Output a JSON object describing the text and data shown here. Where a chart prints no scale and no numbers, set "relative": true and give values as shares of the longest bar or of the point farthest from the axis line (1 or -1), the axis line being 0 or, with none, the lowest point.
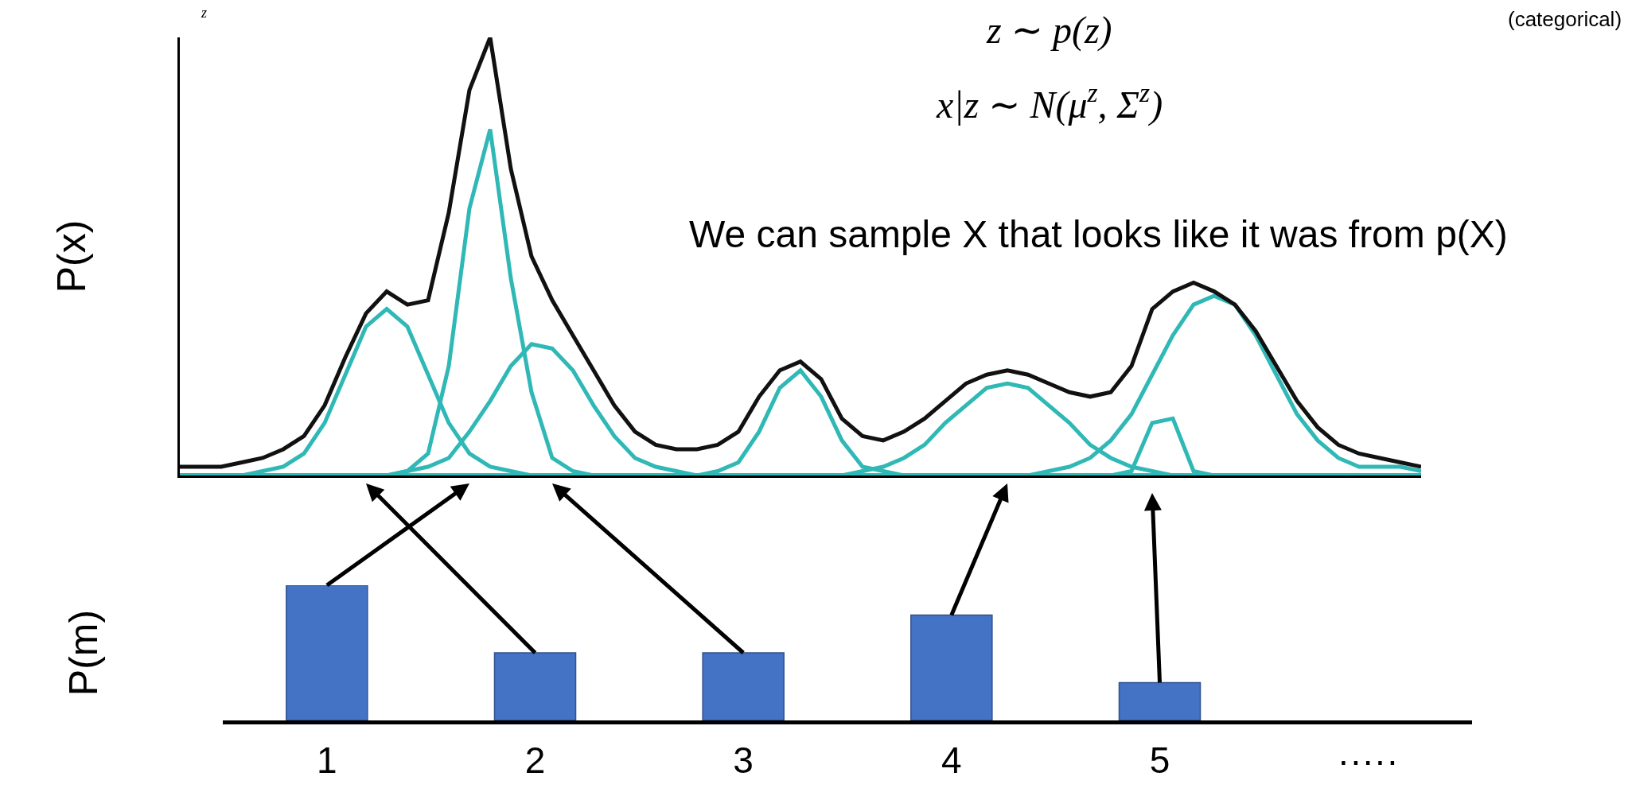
{
  "chart_data": [
    {
      "type": "line",
      "relative": true,
      "ylabel": "P(x)",
      "grid": false,
      "tick_labels": false,
      "categories": [
        null,
        null,
        null,
        null,
        null,
        null,
        null,
        null,
        null,
        null,
        null,
        null,
        null,
        null,
        null,
        null,
        null,
        null,
        null,
        null,
        null,
        null,
        null,
        null,
        null,
        null,
        null,
        null,
        null,
        null,
        null,
        null,
        null,
        null,
        null,
        null,
        null,
        null,
        null,
        null,
        null,
        null,
        null,
        null,
        null,
        null,
        null,
        null,
        null,
        null,
        null,
        null,
        null,
        null,
        null,
        null,
        null,
        null,
        null,
        null,
        null
      ],
      "series": [
        {
          "color": "#2fb8b6",
          "values": [
            0,
            0,
            0,
            0,
            0.01,
            0.02,
            0.05,
            0.12,
            0.23,
            0.34,
            0.38,
            0.34,
            0.23,
            0.12,
            0.05,
            0.02,
            0.01,
            0,
            0,
            0,
            0,
            0,
            0,
            0,
            0,
            0,
            0,
            0,
            0,
            0,
            0,
            0,
            0,
            0,
            0,
            0,
            0,
            0,
            0,
            0,
            0,
            0,
            0,
            0,
            0,
            0,
            0,
            0,
            0,
            0,
            0,
            0,
            0,
            0,
            0,
            0,
            0,
            0,
            0,
            0,
            0
          ]
        },
        {
          "color": "#2fb8b6",
          "values": [
            0,
            0,
            0,
            0,
            0,
            0,
            0,
            0,
            0,
            0,
            0,
            0.01,
            0.05,
            0.25,
            0.61,
            0.79,
            0.45,
            0.19,
            0.04,
            0.01,
            0,
            0,
            0,
            0,
            0,
            0,
            0,
            0,
            0,
            0,
            0,
            0,
            0,
            0,
            0,
            0,
            0,
            0,
            0,
            0,
            0,
            0,
            0,
            0,
            0,
            0,
            0,
            0,
            0,
            0,
            0,
            0,
            0,
            0,
            0,
            0,
            0,
            0,
            0,
            0,
            0
          ]
        },
        {
          "color": "#2fb8b6",
          "values": [
            0,
            0,
            0,
            0,
            0,
            0,
            0,
            0,
            0,
            0,
            0,
            0.01,
            0.02,
            0.04,
            0.1,
            0.17,
            0.25,
            0.3,
            0.29,
            0.24,
            0.16,
            0.09,
            0.04,
            0.02,
            0.01,
            0,
            0,
            0,
            0,
            0,
            0,
            0,
            0,
            0,
            0,
            0,
            0,
            0,
            0,
            0,
            0,
            0,
            0,
            0,
            0,
            0,
            0,
            0,
            0,
            0,
            0,
            0,
            0,
            0,
            0,
            0,
            0,
            0,
            0,
            0,
            0
          ]
        },
        {
          "color": "#2fb8b6",
          "values": [
            0,
            0,
            0,
            0,
            0,
            0,
            0,
            0,
            0,
            0,
            0,
            0,
            0,
            0,
            0,
            0,
            0,
            0,
            0,
            0,
            0,
            0,
            0,
            0,
            0,
            0,
            0.01,
            0.03,
            0.1,
            0.2,
            0.24,
            0.18,
            0.08,
            0.02,
            0.01,
            0,
            0,
            0,
            0,
            0,
            0,
            0,
            0,
            0,
            0,
            0,
            0,
            0,
            0,
            0,
            0,
            0,
            0,
            0,
            0,
            0,
            0,
            0,
            0,
            0,
            0
          ]
        },
        {
          "color": "#2fb8b6",
          "values": [
            0,
            0,
            0,
            0,
            0,
            0,
            0,
            0,
            0,
            0,
            0,
            0,
            0,
            0,
            0,
            0,
            0,
            0,
            0,
            0,
            0,
            0,
            0,
            0,
            0,
            0,
            0,
            0,
            0,
            0,
            0,
            0,
            0,
            0.01,
            0.02,
            0.04,
            0.07,
            0.12,
            0.16,
            0.2,
            0.21,
            0.2,
            0.16,
            0.12,
            0.07,
            0.04,
            0.02,
            0.01,
            0,
            0,
            0,
            0,
            0,
            0,
            0,
            0,
            0,
            0,
            0,
            0,
            0
          ]
        },
        {
          "color": "#2fb8b6",
          "values": [
            0,
            0,
            0,
            0,
            0,
            0,
            0,
            0,
            0,
            0,
            0,
            0,
            0,
            0,
            0,
            0,
            0,
            0,
            0,
            0,
            0,
            0,
            0,
            0,
            0,
            0,
            0,
            0,
            0,
            0,
            0,
            0,
            0,
            0,
            0,
            0,
            0,
            0,
            0,
            0,
            0,
            0,
            0,
            0,
            0,
            0,
            0.01,
            0.12,
            0.13,
            0.01,
            0,
            0,
            0,
            0,
            0,
            0,
            0,
            0,
            0,
            0,
            0
          ]
        },
        {
          "color": "#2fb8b6",
          "values": [
            0,
            0,
            0,
            0,
            0,
            0,
            0,
            0,
            0,
            0,
            0,
            0,
            0,
            0,
            0,
            0,
            0,
            0,
            0,
            0,
            0,
            0,
            0,
            0,
            0,
            0,
            0,
            0,
            0,
            0,
            0,
            0,
            0,
            0,
            0,
            0,
            0,
            0,
            0,
            0,
            0,
            0,
            0.01,
            0.02,
            0.04,
            0.08,
            0.14,
            0.23,
            0.32,
            0.39,
            0.41,
            0.39,
            0.32,
            0.23,
            0.14,
            0.08,
            0.04,
            0.02,
            0.02,
            0.02,
            0.01
          ]
        },
        {
          "color": "#111111",
          "values": [
            0.02,
            0.02,
            0.02,
            0.03,
            0.04,
            0.06,
            0.09,
            0.16,
            0.27,
            0.37,
            0.42,
            0.39,
            0.4,
            0.6,
            0.88,
            1,
            0.7,
            0.5,
            0.4,
            0.32,
            0.24,
            0.16,
            0.1,
            0.07,
            0.06,
            0.06,
            0.07,
            0.1,
            0.18,
            0.24,
            0.26,
            0.22,
            0.13,
            0.09,
            0.08,
            0.1,
            0.13,
            0.17,
            0.21,
            0.23,
            0.24,
            0.23,
            0.21,
            0.19,
            0.18,
            0.19,
            0.25,
            0.38,
            0.42,
            0.44,
            0.42,
            0.39,
            0.33,
            0.25,
            0.17,
            0.11,
            0.07,
            0.05,
            0.04,
            0.03,
            0.02
          ]
        }
      ],
      "annotations": [
        "z",
        "z ∼ p(z)",
        "(categorical)",
        "x|z ∼ N(μ$^{z}$, Σ$^{z}$)",
        "We can sample X that looks like it was from p(X)"
      ]
    },
    {
      "type": "bar",
      "relative": true,
      "ylabel": "P(m)",
      "grid": false,
      "tick_labels": "x",
      "categories": [
        "1",
        "2",
        "3",
        "4",
        "5",
        "·····"
      ],
      "values": [
        1,
        0.5,
        0.5,
        0.78,
        0.28,
        null
      ],
      "color": "#4472c4"
    }
  ]
}
